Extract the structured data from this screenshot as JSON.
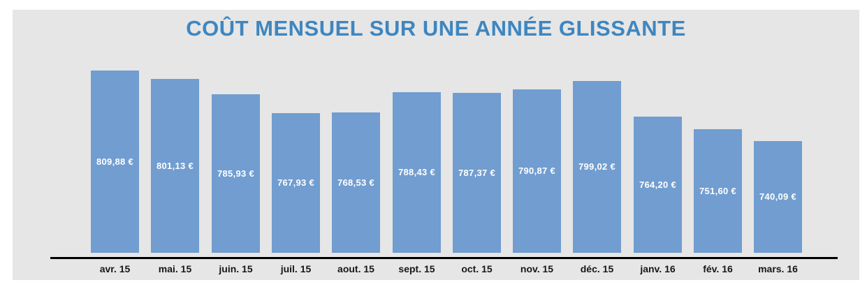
{
  "page": {
    "background": "#ffffff",
    "panel_background": "#e6e6e6"
  },
  "chart_data": {
    "type": "bar",
    "title": "COÛT MENSUEL SUR UNE ANNÉE GLISSANTE",
    "categories": [
      "avr. 15",
      "mai. 15",
      "juin. 15",
      "juil. 15",
      "aout. 15",
      "sept. 15",
      "oct. 15",
      "nov. 15",
      "déc. 15",
      "janv. 16",
      "fév. 16",
      "mars. 16"
    ],
    "values": [
      809.88,
      801.13,
      785.93,
      767.93,
      768.53,
      788.43,
      787.37,
      790.87,
      799.02,
      764.2,
      751.6,
      740.09
    ],
    "value_labels": [
      "809,88 €",
      "801,13 €",
      "785,93 €",
      "767,93 €",
      "768,53 €",
      "788,43 €",
      "787,37 €",
      "790,87 €",
      "799,02 €",
      "764,20 €",
      "751,60 €",
      "740,09 €"
    ],
    "xlabel": "",
    "ylabel": "",
    "ylim": [
      630,
      820
    ],
    "grid": false,
    "legend": false,
    "colors": {
      "bar": "#719dd0",
      "title": "#3e86c0",
      "value_label": "#ffffff",
      "category_label": "#171717",
      "axis_line": "#000000"
    }
  }
}
